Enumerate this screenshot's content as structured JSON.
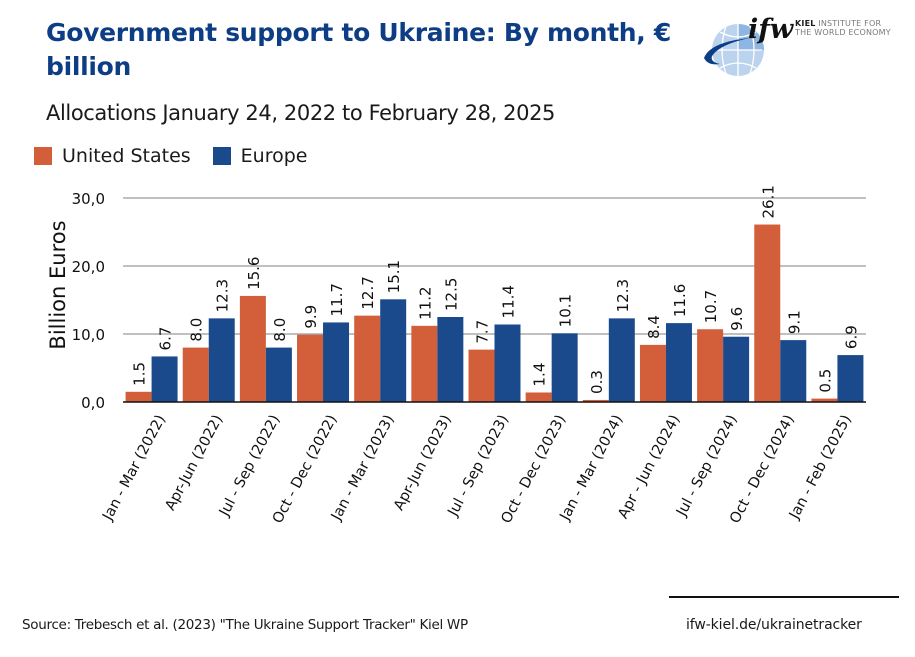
{
  "header": {
    "title": "Government support to Ukraine: By month, € billion",
    "subtitle": "Allocations January 24, 2022 to February 28, 2025"
  },
  "logo": {
    "mark": "ifw",
    "line1_bold": "KIEL",
    "line1_rest": " INSTITUTE FOR",
    "line2": "THE WORLD ECONOMY"
  },
  "footer": {
    "source": "Source: Trebesch et al. (2023) \"The Ukraine Support Tracker\" Kiel WP",
    "url": "ifw-kiel.de/ukrainetracker"
  },
  "colors": {
    "united_states": "#d35f3a",
    "europe": "#1b4a8c",
    "title": "#0d3d84",
    "grid": "#9a9a9a"
  },
  "chart_data": {
    "type": "bar",
    "title": "Government support to Ukraine: By month, € billion",
    "subtitle": "Allocations January 24, 2022 to February 28, 2025",
    "xlabel": "",
    "ylabel": "Billion Euros",
    "ylim": [
      0,
      30
    ],
    "yticks": [
      0,
      10,
      20,
      30
    ],
    "ytick_labels": [
      "0,0",
      "10,0",
      "20,0",
      "30,0"
    ],
    "grid": true,
    "legend": "top-left",
    "categories": [
      "Jan - Mar (2022)",
      "Apr-Jun (2022)",
      "Jul - Sep (2022)",
      "Oct - Dec (2022)",
      "Jan - Mar (2023)",
      "Apr-Jun (2023)",
      "Jul - Sep (2023)",
      "Oct - Dec (2023)",
      "Jan - Mar (2024)",
      "Apr - Jun (2024)",
      "Jul - Sep (2024)",
      "Oct - Dec (2024)",
      "Jan - Feb (2025)"
    ],
    "series": [
      {
        "name": "United States",
        "values": [
          1.5,
          8.0,
          15.6,
          9.9,
          12.7,
          11.2,
          7.7,
          1.4,
          0.3,
          8.4,
          10.7,
          26.1,
          0.5
        ],
        "labels": [
          "1.5",
          "8.0",
          "15.6",
          "9.9",
          "12.7",
          "11.2",
          "7.7",
          "1.4",
          "0.3",
          "8.4",
          "10.7",
          "26.1",
          "0.5"
        ]
      },
      {
        "name": "Europe",
        "values": [
          6.7,
          12.3,
          8.0,
          11.7,
          15.1,
          12.5,
          11.4,
          10.1,
          12.3,
          11.6,
          9.6,
          9.1,
          6.9
        ],
        "labels": [
          "6.7",
          "12.3",
          "8.0",
          "11.7",
          "15.1",
          "12.5",
          "11.4",
          "10.1",
          "12.3",
          "11.6",
          "9.6",
          "9.1",
          "6.9"
        ]
      }
    ]
  }
}
